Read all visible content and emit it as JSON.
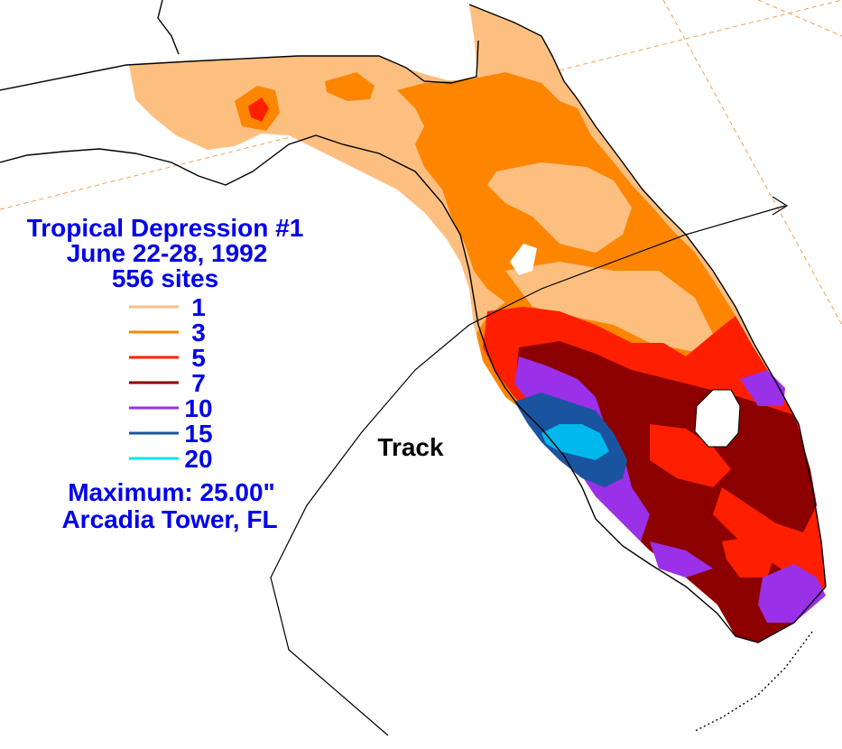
{
  "title": {
    "line1": "Tropical Depression #1",
    "line2": "June 22-28, 1992",
    "line3": "556 sites"
  },
  "legend": {
    "items": [
      {
        "label": "1",
        "color": "#fdbf7f"
      },
      {
        "label": "3",
        "color": "#fd8500"
      },
      {
        "label": "5",
        "color": "#fe1f00"
      },
      {
        "label": "7",
        "color": "#8c0000"
      },
      {
        "label": "10",
        "color": "#9a30e8"
      },
      {
        "label": "15",
        "color": "#1a54a0"
      },
      {
        "label": "20",
        "color": "#00e8e8"
      }
    ]
  },
  "maximum": {
    "label": "Maximum:  25.00\"",
    "location": "Arcadia Tower, FL"
  },
  "track_label": "Track",
  "colors": {
    "background": "#ffffff",
    "coastline": "#000000",
    "grid": "#f0a050",
    "lake": "#ffffff"
  }
}
